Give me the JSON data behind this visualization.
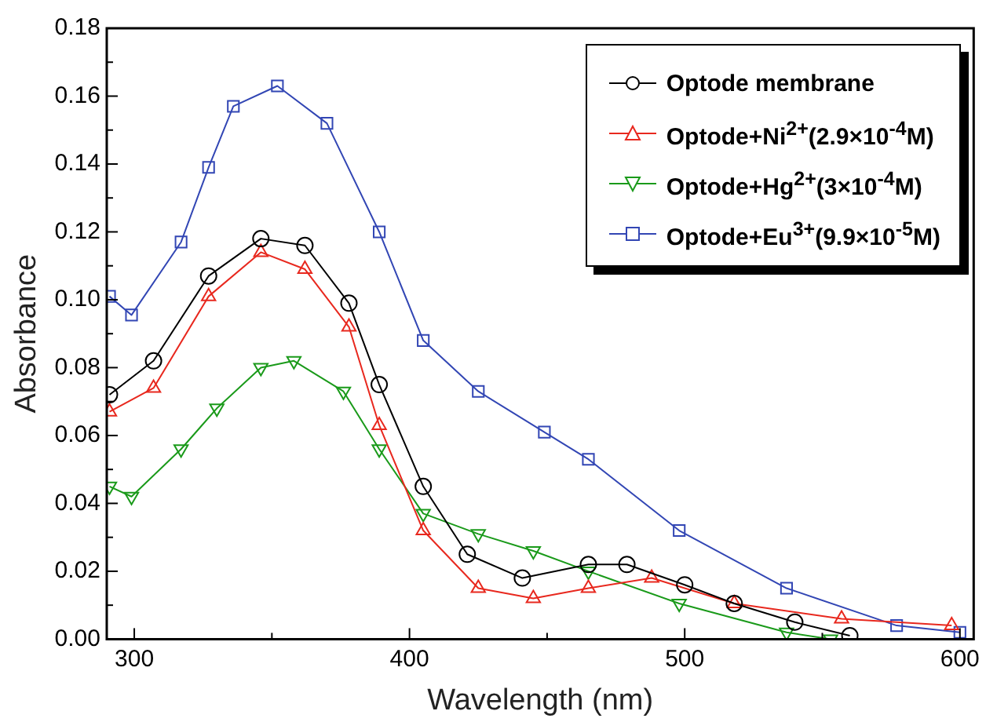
{
  "chart_data": {
    "type": "line",
    "xlabel": "Wavelength (nm)",
    "ylabel": "Absorbance",
    "xlim": [
      290,
      605
    ],
    "ylim": [
      0,
      0.18
    ],
    "xticks": [
      300,
      {
        "value": 350,
        "label": null
      },
      400,
      {
        "value": 450,
        "label": null
      },
      500,
      {
        "value": 550,
        "label": null
      },
      600
    ],
    "yticks": [
      {
        "value": 0,
        "label": "0.00"
      },
      {
        "value": 0.01,
        "label": null
      },
      {
        "value": 0.02,
        "label": "0.02"
      },
      {
        "value": 0.03,
        "label": null
      },
      {
        "value": 0.04,
        "label": "0.04"
      },
      {
        "value": 0.05,
        "label": null
      },
      {
        "value": 0.06,
        "label": "0.06"
      },
      {
        "value": 0.07,
        "label": null
      },
      {
        "value": 0.08,
        "label": "0.08"
      },
      {
        "value": 0.09,
        "label": null
      },
      {
        "value": 0.1,
        "label": "0.10"
      },
      {
        "value": 0.11,
        "label": null
      },
      {
        "value": 0.12,
        "label": "0.12"
      },
      {
        "value": 0.13,
        "label": null
      },
      {
        "value": 0.14,
        "label": "0.14"
      },
      {
        "value": 0.15,
        "label": null
      },
      {
        "value": 0.16,
        "label": "0.16"
      },
      {
        "value": 0.17,
        "label": null
      },
      {
        "value": 0.18,
        "label": "0.18"
      }
    ],
    "grid": false,
    "legend": "top right",
    "line_style": "solid",
    "series": [
      {
        "name": "Optode membrane",
        "color": "#000000",
        "marker": "circle",
        "x": [
          291,
          307,
          327,
          346,
          362,
          378,
          389,
          405,
          421,
          441,
          465,
          479,
          500,
          518,
          540,
          560
        ],
        "values": [
          0.072,
          0.082,
          0.107,
          0.118,
          0.116,
          0.099,
          0.075,
          0.045,
          0.025,
          0.018,
          0.022,
          0.022,
          0.016,
          0.0105,
          0.005,
          0.001
        ]
      },
      {
        "name": "Optode+Ni$^{2+}$(2.9×10$^{-4}$M)",
        "color": "#e8281e",
        "marker": "triangle",
        "x": [
          291,
          307,
          327,
          346,
          362,
          378,
          389,
          405,
          425,
          445,
          465,
          488,
          518,
          557,
          597
        ],
        "values": [
          0.067,
          0.074,
          0.101,
          0.114,
          0.109,
          0.092,
          0.063,
          0.032,
          0.015,
          0.012,
          0.015,
          0.018,
          0.0105,
          0.006,
          0.004
        ]
      },
      {
        "name": "Optode+Hg$^{2+}$(3×10$^{-4}$M)",
        "color": "#1a9a1a",
        "marker": "triangle-down",
        "x": [
          291,
          299,
          317,
          330,
          346,
          358,
          376,
          389,
          405,
          425,
          445,
          465,
          498,
          537,
          553
        ],
        "values": [
          0.045,
          0.042,
          0.056,
          0.068,
          0.08,
          0.082,
          0.073,
          0.056,
          0.037,
          0.031,
          0.026,
          0.02,
          0.0105,
          0.002,
          0
        ]
      },
      {
        "name": "Optode+Eu$^{3+}$(9.9×10$^{-5}$M)",
        "color": "#3246b4",
        "marker": "square",
        "x": [
          291,
          299,
          317,
          327,
          336,
          352,
          370,
          389,
          405,
          425,
          449,
          465,
          498,
          537,
          577,
          600
        ],
        "values": [
          0.101,
          0.0955,
          0.117,
          0.139,
          0.157,
          0.163,
          0.152,
          0.12,
          0.088,
          0.073,
          0.061,
          0.053,
          0.032,
          0.015,
          0.004,
          0.002
        ]
      }
    ]
  }
}
